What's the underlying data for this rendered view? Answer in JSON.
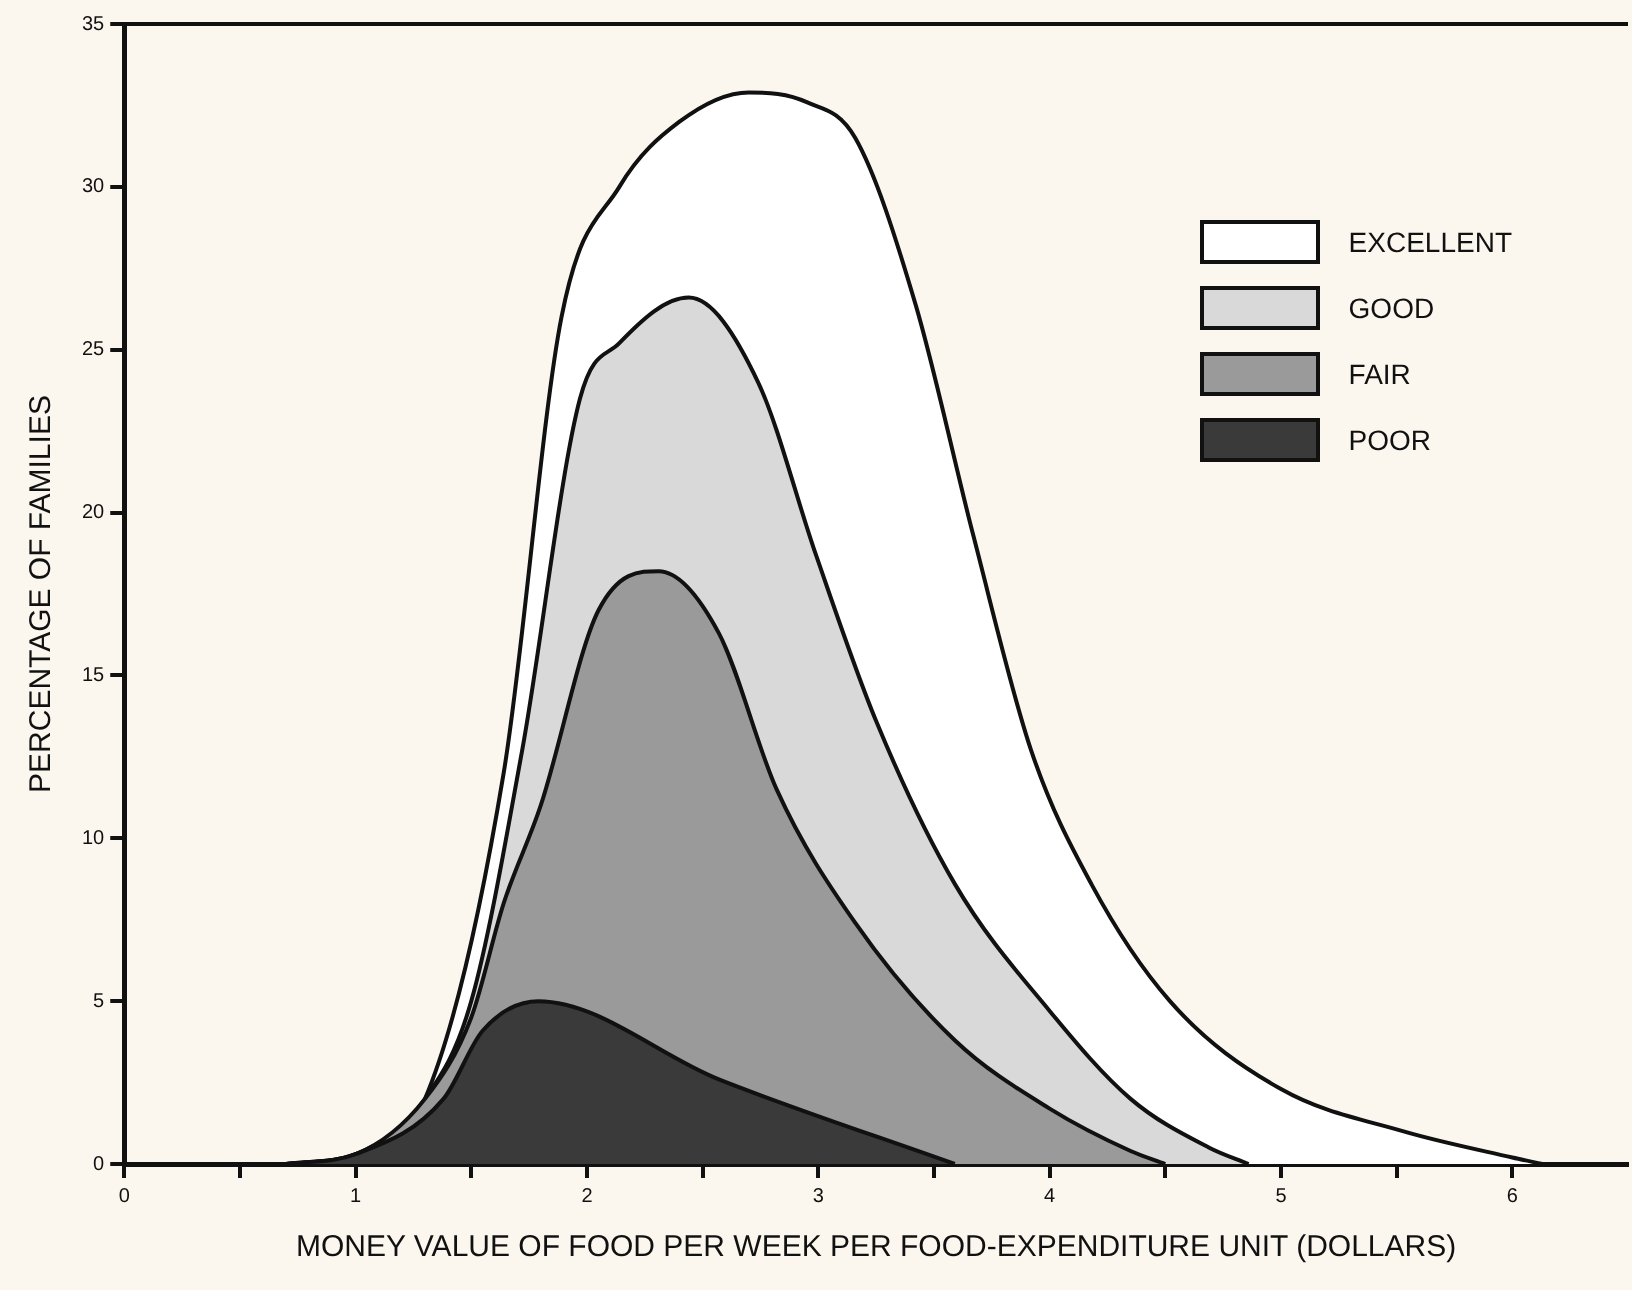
{
  "chart_data": {
    "type": "area",
    "xlabel": "MONEY VALUE OF FOOD PER WEEK PER FOOD-EXPENDITURE UNIT (DOLLARS)",
    "ylabel": "PERCENTAGE OF FAMILIES",
    "xlim": [
      0,
      6.5
    ],
    "ylim": [
      0,
      35
    ],
    "xticks": [
      0,
      {
        "value": 0.5,
        "label": null
      },
      1,
      {
        "value": 1.5,
        "label": null
      },
      2,
      {
        "value": 2.5,
        "label": null
      },
      3,
      {
        "value": 3.5,
        "label": null
      },
      4,
      {
        "value": 4.5,
        "label": null
      },
      5,
      {
        "value": 5.5,
        "label": null
      },
      6
    ],
    "yticks": [
      0,
      5,
      10,
      15,
      20,
      25,
      30,
      35
    ],
    "grid": false,
    "legend": "top right",
    "series": [
      {
        "name": "EXCELLENT",
        "color": "#ffffff",
        "x": [
          0.7,
          1,
          1.3,
          1.64,
          1.89,
          2.14,
          2.4,
          2.7,
          2.95,
          3.16,
          3.42,
          3.67,
          3.92,
          4.18,
          4.52,
          5,
          5.53,
          6,
          6.13
        ],
        "values": [
          0,
          0.3,
          2,
          12,
          26,
          30,
          32,
          32.9,
          32.6,
          31.5,
          26.4,
          19.3,
          12.7,
          8.6,
          5,
          2.3,
          1,
          0.2,
          0
        ]
      },
      {
        "name": "GOOD",
        "color": "#d9d9d9",
        "x": [
          0.7,
          1,
          1.3,
          1.5,
          1.72,
          1.97,
          2.14,
          2.44,
          2.74,
          2.99,
          3.25,
          3.59,
          4,
          4.35,
          4.69,
          4.86
        ],
        "values": [
          0,
          0.3,
          2,
          5,
          12.7,
          23.5,
          25.2,
          26.6,
          24,
          18.7,
          13.6,
          8.6,
          4.7,
          2,
          0.5,
          0
        ]
      },
      {
        "name": "FAIR",
        "color": "#9a9a9a",
        "x": [
          0.7,
          1,
          1.3,
          1.5,
          1.64,
          1.8,
          2.05,
          2.31,
          2.57,
          2.82,
          3.16,
          3.59,
          4,
          4.35,
          4.5
        ],
        "values": [
          0,
          0.3,
          2,
          4.5,
          8,
          11,
          17,
          18.2,
          16.3,
          11.5,
          7.4,
          3.8,
          1.7,
          0.4,
          0
        ]
      },
      {
        "name": "POOR",
        "color": "#3a3a3a",
        "x": [
          0.7,
          1,
          1.38,
          1.55,
          1.79,
          2.57,
          3.59
        ],
        "values": [
          0,
          0.3,
          2,
          4.1,
          5,
          2.6,
          0
        ]
      }
    ]
  }
}
